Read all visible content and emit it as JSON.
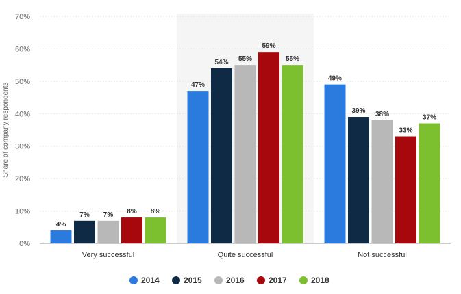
{
  "chart_data": {
    "type": "bar",
    "categories": [
      "Very successful",
      "Quite successful",
      "Not successful"
    ],
    "series": [
      {
        "name": "2014",
        "values": [
          4,
          47,
          49
        ],
        "color": "#2b7bdf"
      },
      {
        "name": "2015",
        "values": [
          7,
          54,
          39
        ],
        "color": "#0f2a44"
      },
      {
        "name": "2016",
        "values": [
          7,
          55,
          38
        ],
        "color": "#b8b8b8"
      },
      {
        "name": "2017",
        "values": [
          8,
          59,
          33
        ],
        "color": "#a7080d"
      },
      {
        "name": "2018",
        "values": [
          8,
          55,
          37
        ],
        "color": "#7cbf2f"
      }
    ],
    "title": "",
    "xlabel": "",
    "ylabel": "Share of company respondents",
    "ylim": [
      0,
      70
    ],
    "yticks": [
      0,
      10,
      20,
      30,
      40,
      50,
      60,
      70
    ],
    "value_suffix": "%",
    "grid": true,
    "legend": "bottom-center",
    "highlighted_category": "Quite successful"
  }
}
